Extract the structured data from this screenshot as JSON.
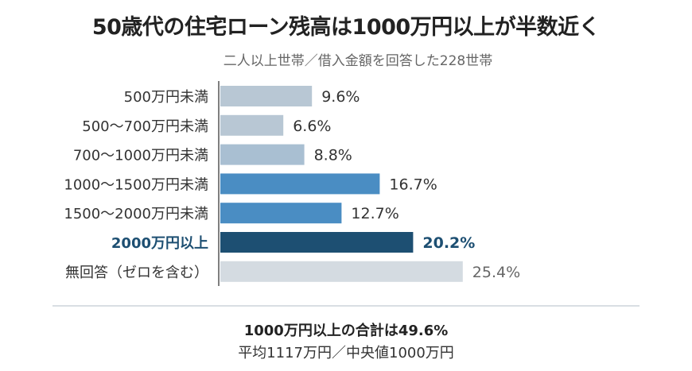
{
  "title": "50歳代の住宅ローン残高は1000万円以上が半数近く",
  "subtitle": "二人以上世帯／借入金額を回答した228世帯",
  "chart_data": {
    "type": "bar",
    "orientation": "horizontal",
    "categories": [
      "500万円未満",
      "500〜700万円未満",
      "700〜1000万円未満",
      "1000〜1500万円未満",
      "1500〜2000万円未満",
      "2000万円以上",
      "無回答（ゼロを含む）"
    ],
    "values": [
      9.6,
      6.6,
      8.8,
      16.7,
      12.7,
      20.2,
      25.4
    ],
    "value_labels": [
      "9.6%",
      "6.6%",
      "8.8%",
      "16.7%",
      "12.7%",
      "20.2%",
      "25.4%"
    ],
    "colors": [
      "#b8c7d4",
      "#b8c7d4",
      "#a9bfd2",
      "#4a8dc3",
      "#4a8dc3",
      "#1d4f72",
      "#d4dbe1"
    ],
    "highlight_index": 5,
    "highlight_color": "#1d4f72"
  },
  "notes": {
    "total": "1000万円以上の合計は49.6%",
    "stats": "平均1117万円／中央値1000万円"
  }
}
